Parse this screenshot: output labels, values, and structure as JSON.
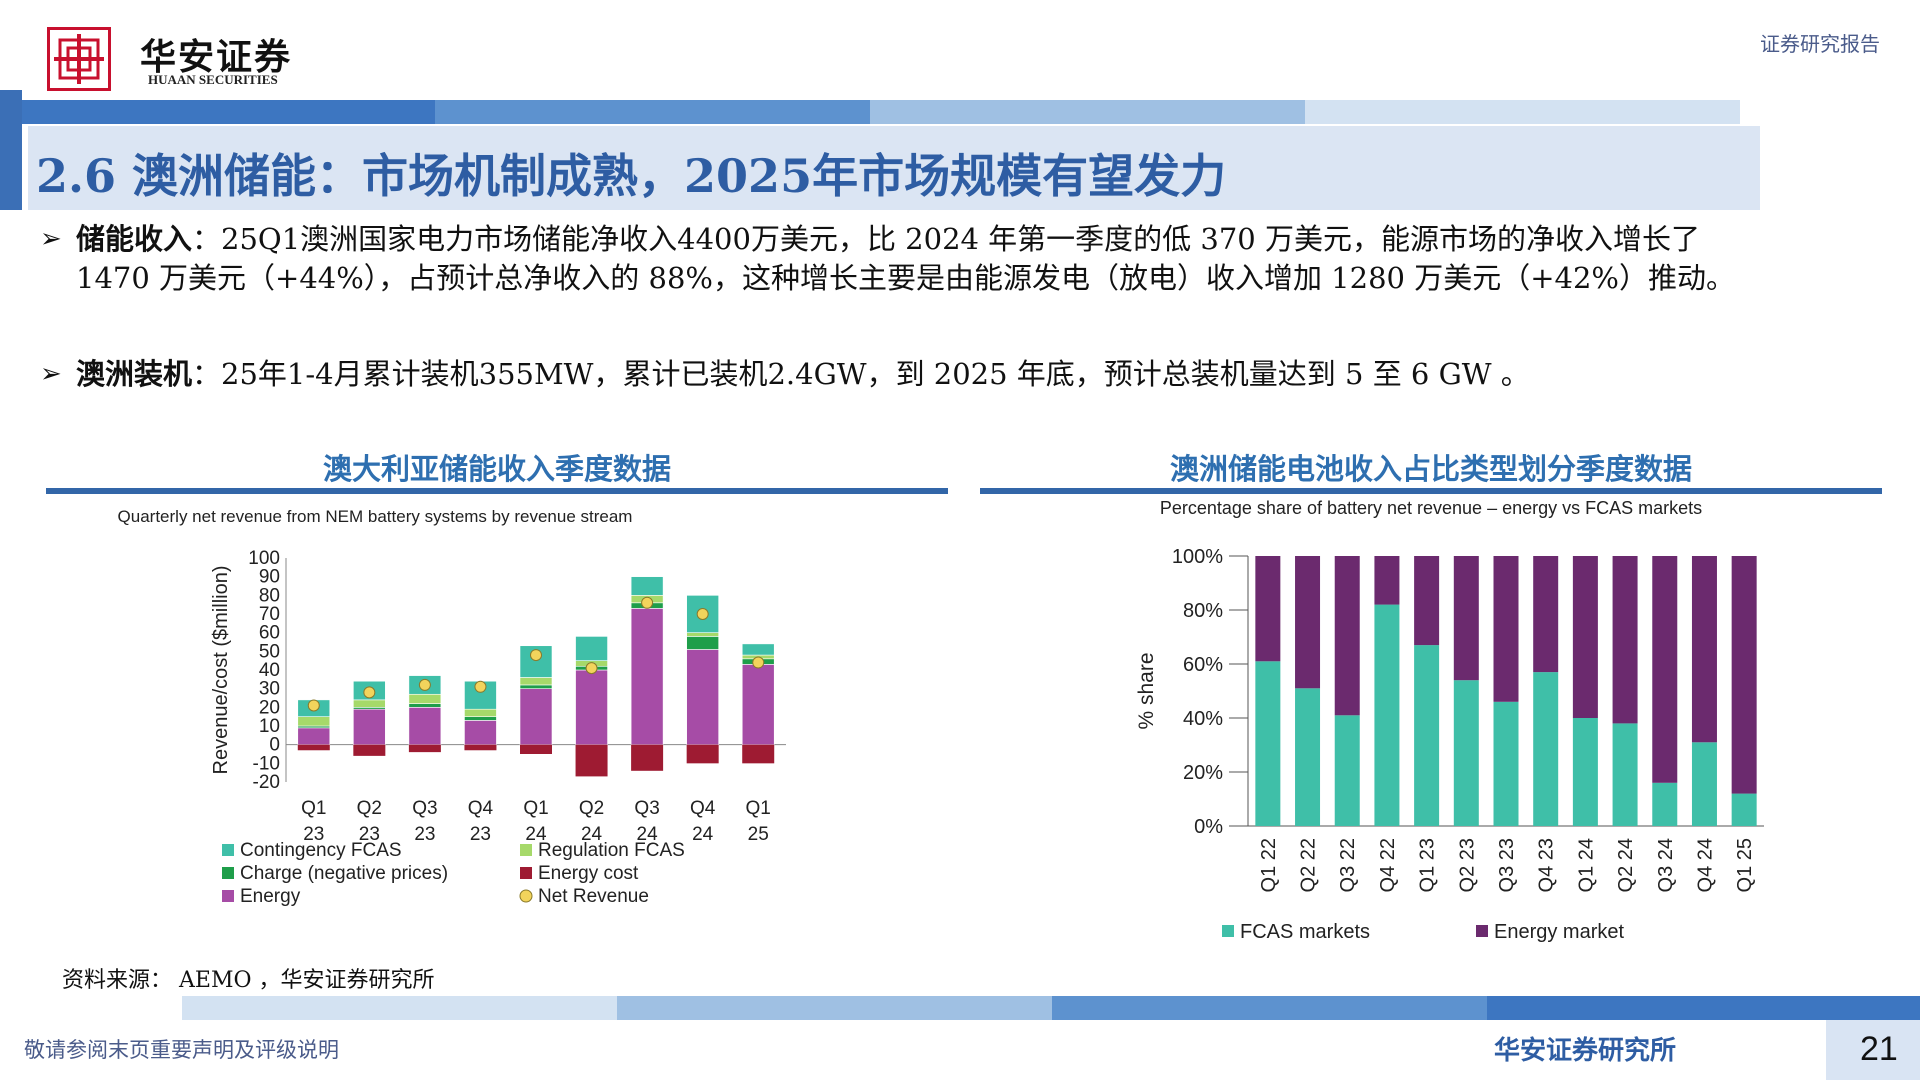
{
  "header": {
    "brand_cn": "华安证券",
    "brand_en": "HUAAN SECURITIES",
    "report_type": "证券研究报告"
  },
  "title": "2.6 澳洲储能：市场机制成熟，2025年市场规模有望发力",
  "bullets": [
    {
      "label": "储能收入",
      "text": "：25Q1澳洲国家电力市场储能净收入4400万美元，比 2024 年第一季度的低 370 万美元，能源市场的净收入增长了 1470 万美元（+44%），占预计总净收入的 88%，这种增长主要是由能源发电（放电）收入增加 1280 万美元（+42%）推动。"
    },
    {
      "label": "澳洲装机",
      "text": "：25年1-4月累计装机355MW，累计已装机2.4GW，到 2025 年底，预计总装机量达到 5 至 6 GW 。"
    }
  ],
  "charts": {
    "left_heading": "澳大利亚储能收入季度数据",
    "right_heading": "澳洲储能电池收入占比类型划分季度数据"
  },
  "chart_data": [
    {
      "type": "bar",
      "stacked": true,
      "title": "Quarterly net revenue from NEM battery systems by revenue stream",
      "ylabel": "Revenue/cost ($million)",
      "ylim": [
        -20,
        100
      ],
      "yticks": [
        -20,
        -10,
        0,
        10,
        20,
        30,
        40,
        50,
        60,
        70,
        80,
        90,
        100
      ],
      "categories": [
        [
          "Q1",
          "23"
        ],
        [
          "Q2",
          "23"
        ],
        [
          "Q3",
          "23"
        ],
        [
          "Q4",
          "23"
        ],
        [
          "Q1",
          "24"
        ],
        [
          "Q2",
          "24"
        ],
        [
          "Q3",
          "24"
        ],
        [
          "Q4",
          "24"
        ],
        [
          "Q1",
          "25"
        ]
      ],
      "series": [
        {
          "name": "Energy",
          "color": "#a64ca6",
          "values": [
            9,
            19,
            20,
            13,
            30,
            40,
            73,
            51,
            43
          ]
        },
        {
          "name": "Charge (negative prices)",
          "color": "#1e9e4a",
          "values": [
            1,
            1,
            2,
            2,
            2,
            2,
            3,
            7,
            3
          ]
        },
        {
          "name": "Regulation FCAS",
          "color": "#a6d96a",
          "values": [
            5,
            4,
            5,
            4,
            4,
            3,
            4,
            2,
            2
          ]
        },
        {
          "name": "Contingency FCAS",
          "color": "#3fbfa8",
          "values": [
            9,
            10,
            10,
            15,
            17,
            13,
            10,
            20,
            6
          ]
        },
        {
          "name": "Energy cost",
          "color": "#9e1b32",
          "values": [
            -3,
            -6,
            -4,
            -3,
            -5,
            -17,
            -14,
            -10,
            -10
          ]
        }
      ],
      "net_revenue": {
        "name": "Net Revenue",
        "color": "#f2d45c",
        "values": [
          21,
          28,
          32,
          31,
          48,
          41,
          76,
          70,
          44
        ]
      },
      "legend_order": [
        "Contingency FCAS",
        "Regulation FCAS",
        "Charge (negative prices)",
        "Energy cost",
        "Energy",
        "Net Revenue"
      ]
    },
    {
      "type": "bar",
      "stacked": true,
      "title": "Percentage share of battery net revenue – energy vs FCAS markets",
      "ylabel": "% share",
      "ylim": [
        0,
        100
      ],
      "yticks": [
        "0%",
        "20%",
        "40%",
        "60%",
        "80%",
        "100%"
      ],
      "categories": [
        "Q1 22",
        "Q2 22",
        "Q3 22",
        "Q4 22",
        "Q1 23",
        "Q2 23",
        "Q3 23",
        "Q4 23",
        "Q1 24",
        "Q2 24",
        "Q3 24",
        "Q4 24",
        "Q1 25"
      ],
      "series": [
        {
          "name": "FCAS markets",
          "color": "#3fbfa8",
          "values": [
            61,
            51,
            41,
            82,
            67,
            54,
            46,
            57,
            40,
            38,
            16,
            31,
            12
          ]
        },
        {
          "name": "Energy market",
          "color": "#6b2a6e",
          "values": [
            39,
            49,
            59,
            18,
            33,
            46,
            54,
            43,
            60,
            62,
            84,
            69,
            88
          ]
        }
      ]
    }
  ],
  "source": "资料来源： AEMO ，华安证券研究所",
  "footer": {
    "disclaimer": "敬请参阅末页重要声明及评级说明",
    "institute": "华安证券研究所",
    "page": "21"
  },
  "colors": {
    "primary": "#2e5da3",
    "brand_red": "#c8102e"
  }
}
